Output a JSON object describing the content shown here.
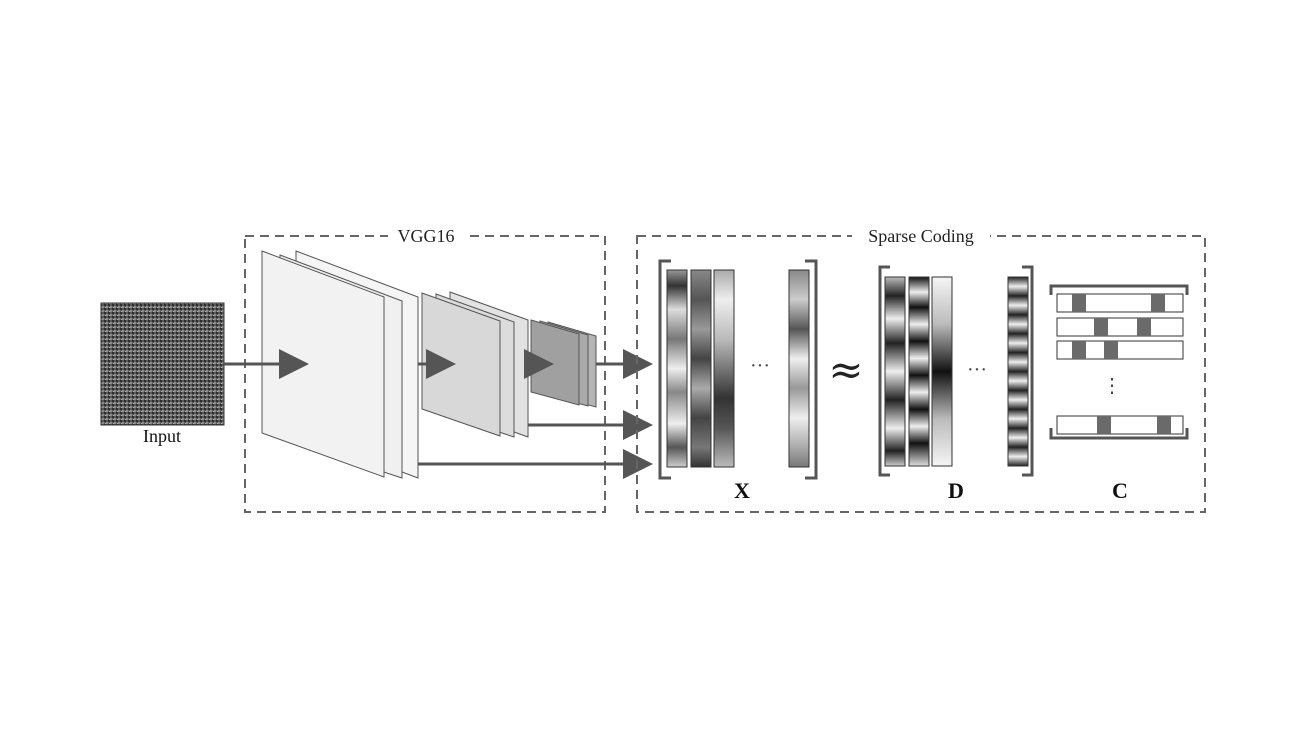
{
  "labels": {
    "input": "Input",
    "vgg_box": "VGG16",
    "sparse_box": "Sparse Coding",
    "matrix_x": "X",
    "matrix_d": "D",
    "matrix_c": "C",
    "approx_symbol": "≈",
    "ellipsis_h": "···",
    "ellipsis_v": "⋮"
  },
  "colors": {
    "dashed_border": "#666666",
    "arrow": "#555555",
    "layer_stroke": "#555555",
    "code_block": "#6a6a6a"
  }
}
